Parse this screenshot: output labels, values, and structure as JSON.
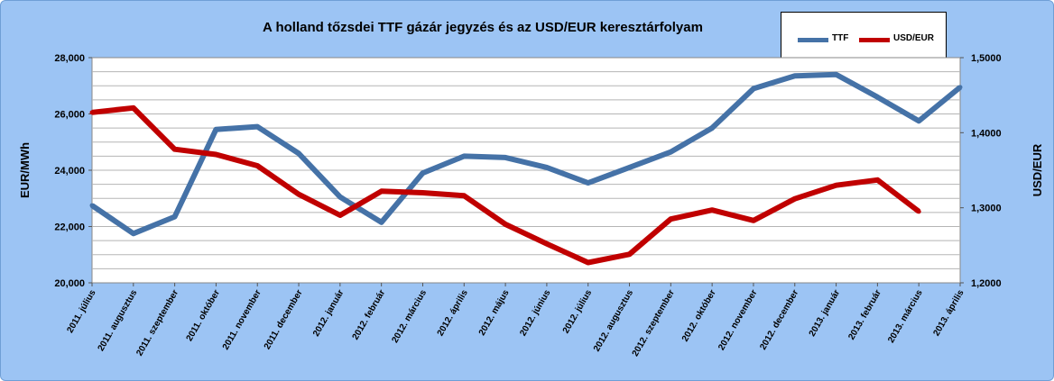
{
  "chart_data": {
    "type": "line",
    "title": "A holland tőzsdei TTF gázár jegyzés és az USD/EUR keresztárfolyam",
    "ylabel_left": "EUR/MWh",
    "ylabel_right": "USD/EUR",
    "categories": [
      "2011. július",
      "2011. augusztus",
      "2011. szeptember",
      "2011. október",
      "2011. november",
      "2011. december",
      "2012. január",
      "2012. február",
      "2012. március",
      "2012. április",
      "2012. május",
      "2012. június",
      "2012. július",
      "2012. augusztus",
      "2012. szeptember",
      "2012. október",
      "2012. november",
      "2012. december",
      "2013. január",
      "2013. február",
      "2013. március",
      "2013. április"
    ],
    "y_left": {
      "min": 20000,
      "max": 28000,
      "step": 2000,
      "tick_labels": [
        "20,000",
        "22,000",
        "24,000",
        "26,000",
        "28,000"
      ]
    },
    "y_right": {
      "min": 1.2,
      "max": 1.5,
      "step": 0.1,
      "tick_labels": [
        "1,2000",
        "1,3000",
        "1,4000",
        "1,5000"
      ]
    },
    "grid": true,
    "legend_position": "top-right",
    "series": [
      {
        "name": "TTF",
        "axis": "left",
        "color": "#4572a7",
        "values": [
          22750,
          21750,
          22350,
          25450,
          25550,
          24600,
          23050,
          22150,
          23900,
          24500,
          24450,
          24100,
          23550,
          24100,
          24650,
          25500,
          26900,
          27350,
          27400,
          26600,
          25750,
          26950
        ]
      },
      {
        "name": "USD/EUR",
        "axis": "right",
        "color": "#c00000",
        "values": [
          1.427,
          1.433,
          1.378,
          1.371,
          1.356,
          1.318,
          1.29,
          1.322,
          1.32,
          1.316,
          1.278,
          1.252,
          1.227,
          1.238,
          1.285,
          1.297,
          1.283,
          1.312,
          1.33,
          1.337,
          1.295,
          null
        ]
      }
    ]
  }
}
